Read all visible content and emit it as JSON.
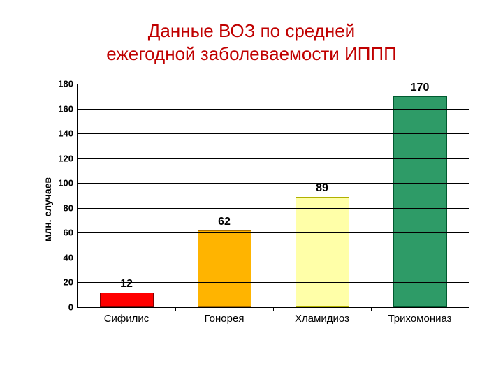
{
  "title_line1": "Данные ВОЗ по средней",
  "title_line2": "ежегодной заболеваемости ИППП",
  "title_color": "#c00000",
  "title_fontsize": 26,
  "chart": {
    "type": "bar",
    "ylabel": "млн. случаев",
    "ylabel_fontsize": 14,
    "ylim_min": 0,
    "ylim_max": 180,
    "ytick_step": 20,
    "yticks": [
      0,
      20,
      40,
      60,
      80,
      100,
      120,
      140,
      160,
      180
    ],
    "tick_fontsize": 13,
    "value_fontsize": 16,
    "category_fontsize": 15,
    "grid_color": "#000000",
    "background_color": "#ffffff",
    "bar_width": 0.55,
    "categories": [
      "Сифилис",
      "Гонорея",
      "Хламидиоз",
      "Трихомониаз"
    ],
    "values": [
      12,
      62,
      89,
      170
    ],
    "bar_fill_colors": [
      "#ff0000",
      "#ffb400",
      "#ffffa8",
      "#2e9b67"
    ],
    "bar_border_colors": [
      "#800000",
      "#a86d00",
      "#b0b000",
      "#005a30"
    ]
  }
}
